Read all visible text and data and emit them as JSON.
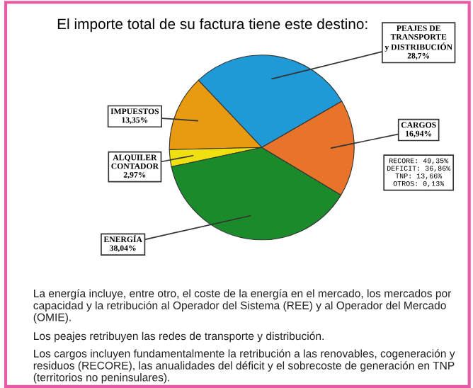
{
  "chart_data": {
    "type": "pie",
    "title": "El importe total de su factura tiene este destino:",
    "categories": [
      "PEAJES DE\nTRANSPORTE\ny DISTRIBUCIÓN",
      "IMPUESTOS",
      "ALQUILER\nCONTADOR",
      "ENERGÍA",
      "CARGOS"
    ],
    "values": [
      28.7,
      13.35,
      2.97,
      38.04,
      16.94
    ],
    "value_labels": [
      "28,7%",
      "13,35%",
      "2,97%",
      "38,04%",
      "16,94%"
    ],
    "colors": [
      "#1f9ad6",
      "#e89a10",
      "#f0e010",
      "#1a8a2a",
      "#e8732a"
    ],
    "annotations": [
      "RECORE: 49,35%\nDEFICIT: 36,86%\nTNP: 13,66%\nOTROS: 0,13%",
      "La energía incluye, entre otro, el coste de la energía en el mercado, los mercados por capacidad y la retribución al Operador del Sistema (REE) y al Operador del Mercado (OMIE).",
      "Los peajes retribuyen las redes de transporte y distribución.",
      "Los cargos incluyen fundamentalmente la retribución a las renovables, cogeneración y residuos (RECORE), las anualidades del déficit y el sobrecoste de generación en TNP (territorios no peninsulares)."
    ]
  }
}
